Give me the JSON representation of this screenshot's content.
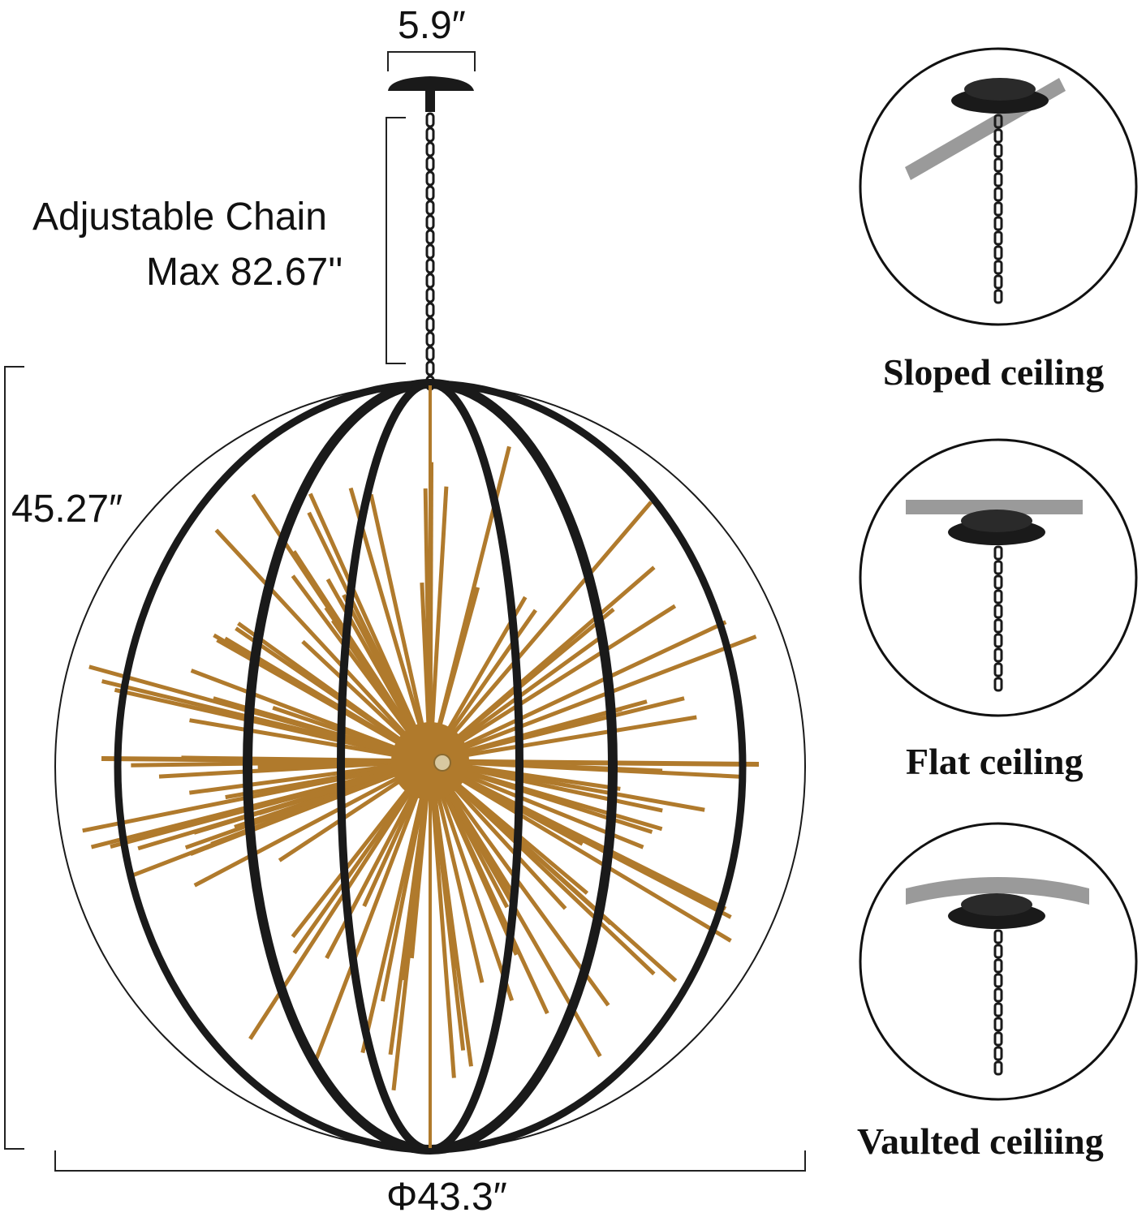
{
  "dimensions": {
    "canopy_width": "5.9″",
    "chain_label_line1": "Adjustable Chain",
    "chain_label_line2": "Max 82.67''",
    "height": "45.27″",
    "diameter": "Φ43.3″"
  },
  "mounting_options": [
    {
      "label": "Sloped ceiling"
    },
    {
      "label": "Flat ceiling"
    },
    {
      "label": "Vaulted ceiliing"
    }
  ],
  "colors": {
    "frame": "#1a1a1a",
    "spikes": "#b07a2c",
    "ceiling": "#9a9a9a"
  }
}
